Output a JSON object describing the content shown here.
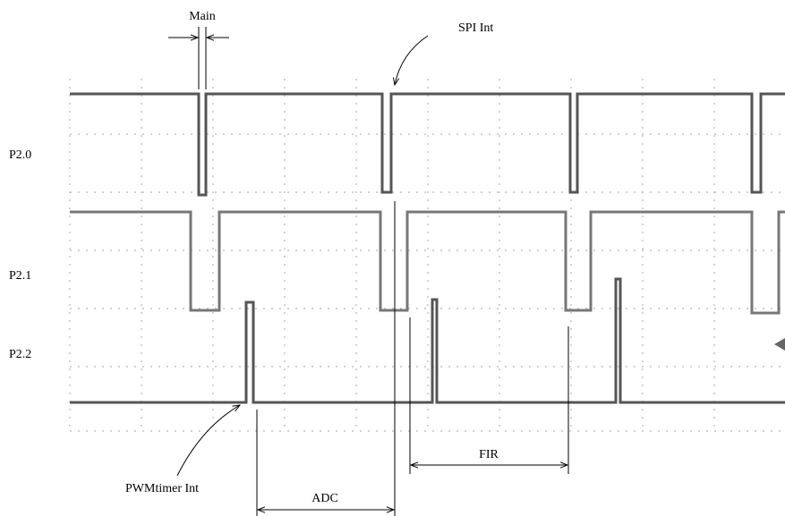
{
  "labels": {
    "main": "Main",
    "spi_int": "SPI Int",
    "p20": "P2.0",
    "p21": "P2.1",
    "p22": "P2.2",
    "pwm_int": "PWMtimer Int",
    "adc": "ADC",
    "fir": "FIR"
  }
}
